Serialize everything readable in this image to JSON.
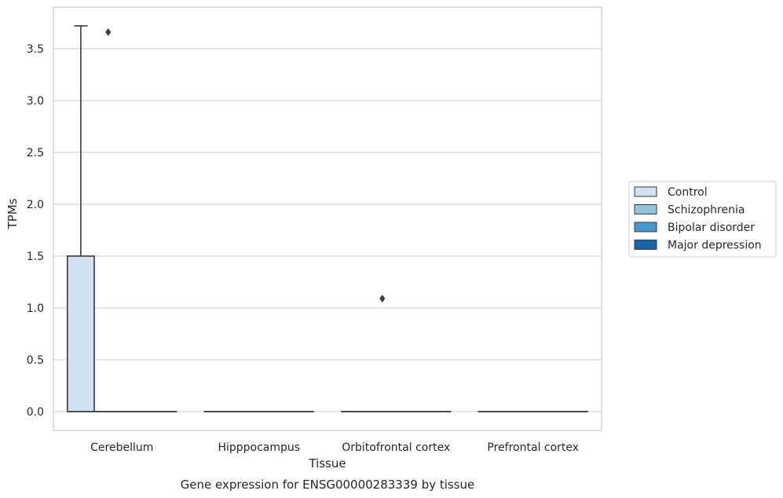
{
  "chart_data": {
    "type": "box",
    "xlabel": "Tissue",
    "ylabel": "TPMs",
    "caption": "Gene expression for ENSG00000283339 by tissue",
    "ylim": [
      -0.18,
      3.88
    ],
    "yticks": [
      "0.0",
      "0.5",
      "1.0",
      "1.5",
      "2.0",
      "2.5",
      "3.0",
      "3.5"
    ],
    "grid": "horizontal",
    "legend_position": "right",
    "categories": [
      "Cerebellum",
      "Hipppocampus",
      "Orbitofrontal cortex",
      "Prefrontal cortex"
    ],
    "series": [
      {
        "name": "Control",
        "color": "#cfe1f2",
        "boxes": [
          {
            "category": "Cerebellum",
            "q1": 0.0,
            "median": 0.0,
            "q3": 1.5,
            "whisker_low": 0.0,
            "whisker_high": 3.72,
            "outliers": []
          },
          {
            "category": "Hipppocampus",
            "q1": 0.0,
            "median": 0.0,
            "q3": 0.0,
            "whisker_low": 0.0,
            "whisker_high": 0.0,
            "outliers": []
          },
          {
            "category": "Orbitofrontal cortex",
            "q1": 0.0,
            "median": 0.0,
            "q3": 0.0,
            "whisker_low": 0.0,
            "whisker_high": 0.0,
            "outliers": []
          },
          {
            "category": "Prefrontal cortex",
            "q1": 0.0,
            "median": 0.0,
            "q3": 0.0,
            "whisker_low": 0.0,
            "whisker_high": 0.0,
            "outliers": []
          }
        ]
      },
      {
        "name": "Schizophrenia",
        "color": "#93c4de",
        "boxes": [
          {
            "category": "Cerebellum",
            "q1": 0.0,
            "median": 0.0,
            "q3": 0.0,
            "whisker_low": 0.0,
            "whisker_high": 0.0,
            "outliers": [
              3.66
            ]
          },
          {
            "category": "Hipppocampus",
            "q1": 0.0,
            "median": 0.0,
            "q3": 0.0,
            "whisker_low": 0.0,
            "whisker_high": 0.0,
            "outliers": []
          },
          {
            "category": "Orbitofrontal cortex",
            "q1": 0.0,
            "median": 0.0,
            "q3": 0.0,
            "whisker_low": 0.0,
            "whisker_high": 0.0,
            "outliers": [
              1.09
            ]
          },
          {
            "category": "Prefrontal cortex",
            "q1": 0.0,
            "median": 0.0,
            "q3": 0.0,
            "whisker_low": 0.0,
            "whisker_high": 0.0,
            "outliers": []
          }
        ]
      },
      {
        "name": "Bipolar disorder",
        "color": "#4a98c9",
        "boxes": [
          {
            "category": "Cerebellum",
            "q1": 0.0,
            "median": 0.0,
            "q3": 0.0,
            "whisker_low": 0.0,
            "whisker_high": 0.0,
            "outliers": []
          },
          {
            "category": "Hipppocampus",
            "q1": 0.0,
            "median": 0.0,
            "q3": 0.0,
            "whisker_low": 0.0,
            "whisker_high": 0.0,
            "outliers": []
          },
          {
            "category": "Orbitofrontal cortex",
            "q1": 0.0,
            "median": 0.0,
            "q3": 0.0,
            "whisker_low": 0.0,
            "whisker_high": 0.0,
            "outliers": []
          },
          {
            "category": "Prefrontal cortex",
            "q1": 0.0,
            "median": 0.0,
            "q3": 0.0,
            "whisker_low": 0.0,
            "whisker_high": 0.0,
            "outliers": []
          }
        ]
      },
      {
        "name": "Major depression",
        "color": "#1764ab",
        "boxes": [
          {
            "category": "Cerebellum",
            "q1": 0.0,
            "median": 0.0,
            "q3": 0.0,
            "whisker_low": 0.0,
            "whisker_high": 0.0,
            "outliers": []
          },
          {
            "category": "Hipppocampus",
            "q1": 0.0,
            "median": 0.0,
            "q3": 0.0,
            "whisker_low": 0.0,
            "whisker_high": 0.0,
            "outliers": []
          },
          {
            "category": "Orbitofrontal cortex",
            "q1": 0.0,
            "median": 0.0,
            "q3": 0.0,
            "whisker_low": 0.0,
            "whisker_high": 0.0,
            "outliers": []
          },
          {
            "category": "Prefrontal cortex",
            "q1": 0.0,
            "median": 0.0,
            "q3": 0.0,
            "whisker_low": 0.0,
            "whisker_high": 0.0,
            "outliers": []
          }
        ]
      }
    ]
  }
}
